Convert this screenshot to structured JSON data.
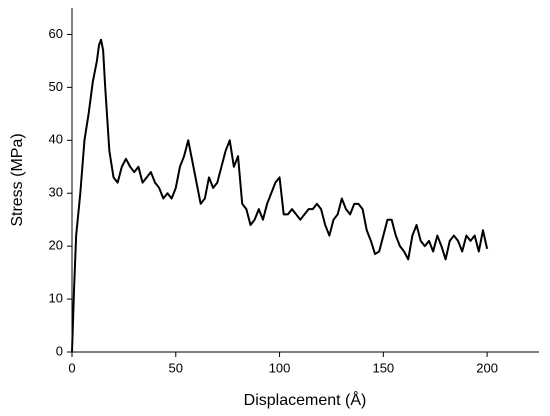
{
  "chart_data": {
    "type": "line",
    "x_label": "Displacement (Å)",
    "y_label": "Stress (MPa)",
    "x": [
      0,
      1,
      2,
      4,
      6,
      8,
      10,
      12,
      13,
      14,
      15,
      16,
      18,
      20,
      22,
      24,
      26,
      28,
      30,
      32,
      34,
      36,
      38,
      40,
      42,
      44,
      46,
      48,
      50,
      52,
      54,
      56,
      58,
      60,
      62,
      64,
      66,
      68,
      70,
      72,
      74,
      76,
      78,
      80,
      82,
      84,
      86,
      88,
      90,
      92,
      94,
      96,
      98,
      100,
      102,
      104,
      106,
      108,
      110,
      112,
      114,
      116,
      118,
      120,
      122,
      124,
      126,
      128,
      130,
      132,
      134,
      136,
      138,
      140,
      142,
      144,
      146,
      148,
      150,
      152,
      154,
      156,
      158,
      160,
      162,
      164,
      166,
      168,
      170,
      172,
      174,
      176,
      178,
      180,
      182,
      184,
      186,
      188,
      190,
      192,
      194,
      196,
      198,
      200
    ],
    "values": [
      0,
      12,
      22,
      30,
      40,
      45,
      51,
      55,
      58,
      59,
      57,
      50,
      38,
      33,
      32,
      35,
      36.5,
      35,
      34,
      35,
      32,
      33,
      34,
      32,
      31,
      29,
      30,
      29,
      31,
      35,
      37,
      40,
      36,
      32,
      28,
      29,
      33,
      31,
      32,
      35,
      38,
      40,
      35,
      37,
      28,
      27,
      24,
      25,
      27,
      25,
      28,
      30,
      32,
      33,
      26,
      26,
      27,
      26,
      25,
      26,
      27,
      27,
      28,
      27,
      24,
      22,
      25,
      26,
      29,
      27,
      26,
      28,
      28,
      27,
      23,
      21,
      18.5,
      19,
      22,
      25,
      25,
      22,
      20,
      19,
      17.5,
      22,
      24,
      21,
      20,
      21,
      19,
      22,
      20,
      17.5,
      21,
      22,
      21,
      19,
      22,
      21,
      22,
      19,
      23,
      19.5
    ],
    "color": "#000000",
    "xlim": [
      0,
      225
    ],
    "xticks": [
      0,
      50,
      100,
      150,
      200
    ],
    "ylim": [
      0,
      65
    ],
    "yticks": [
      0,
      10,
      20,
      30,
      40,
      50,
      60
    ],
    "grid": false
  }
}
